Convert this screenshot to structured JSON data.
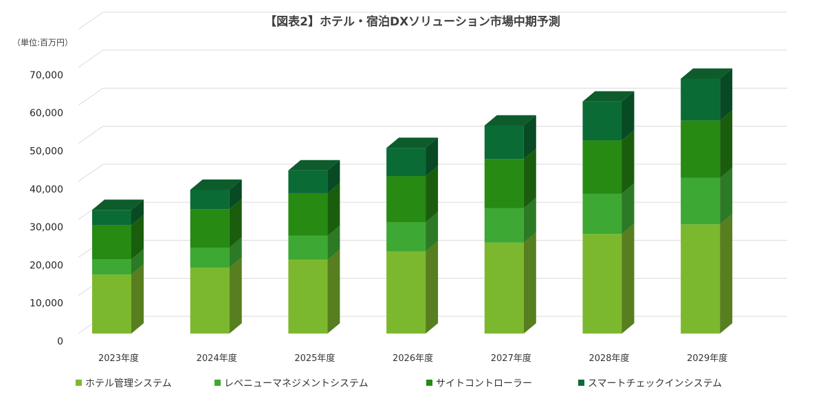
{
  "chart_data": {
    "type": "bar",
    "stacked": true,
    "style": "3d",
    "title": "【図表2】ホテル・宿泊DXソリューション市場中期予測",
    "unit_label": "（単位:百万円）",
    "categories": [
      "2023年度",
      "2024年度",
      "2025年度",
      "2026年度",
      "2027年度",
      "2028年度",
      "2029年度"
    ],
    "ylim": [
      0,
      70000
    ],
    "yticks": [
      0,
      10000,
      20000,
      30000,
      40000,
      50000,
      60000,
      70000
    ],
    "ytick_labels": [
      "0",
      "10,000",
      "20,000",
      "30,000",
      "40,000",
      "50,000",
      "60,000",
      "70,000"
    ],
    "grid": true,
    "legend_position": "bottom",
    "series": [
      {
        "name": "ホテル管理システム",
        "color": "#7cb82e",
        "side": "#577e1f",
        "values": [
          15500,
          17300,
          19400,
          21600,
          23900,
          26200,
          28700
        ]
      },
      {
        "name": "レベニューマネジメントシステム",
        "color": "#3da833",
        "side": "#2c7a25",
        "values": [
          4000,
          5300,
          6300,
          7700,
          9100,
          10600,
          12200
        ]
      },
      {
        "name": "サイトコントローラー",
        "color": "#268a13",
        "side": "#1a5e0d",
        "values": [
          9000,
          10100,
          11200,
          12100,
          12900,
          14000,
          15100
        ]
      },
      {
        "name": "スマートチェックインシステム",
        "color": "#0b6b35",
        "side": "#074a24",
        "values": [
          4000,
          5100,
          6000,
          7400,
          8800,
          10200,
          11000
        ]
      }
    ]
  }
}
